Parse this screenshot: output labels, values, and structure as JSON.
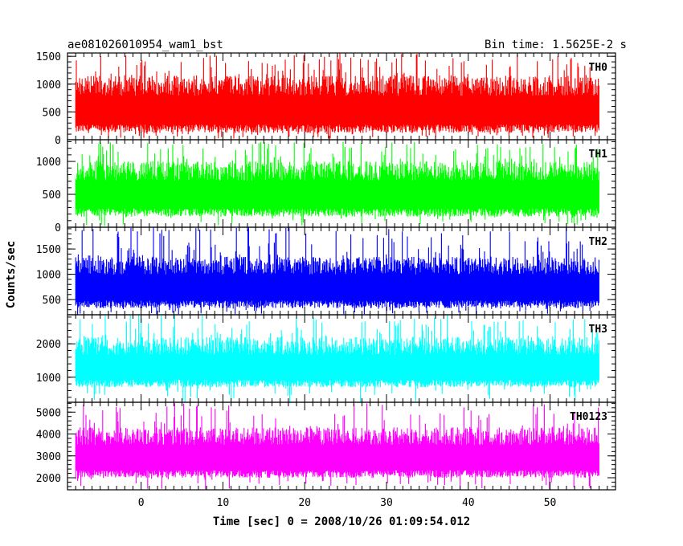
{
  "chart_data": {
    "type": "line",
    "title_left": "ae081026010954_wam1_bst",
    "title_right": "Bin time: 1.5625E-2 s",
    "xlabel": "Time [sec] 0 = 2008/10/26 01:09:54.012",
    "ylabel": "Counts/sec",
    "xlim": [
      -9,
      58
    ],
    "x_data_range": [
      -8,
      56
    ],
    "x_ticks": [
      0,
      10,
      20,
      30,
      40,
      50
    ],
    "x_tick_labels": [
      "0",
      "10",
      "20",
      "30",
      "40",
      "50"
    ],
    "grid": false,
    "panels": [
      {
        "name": "TH0",
        "color": "#ff0000",
        "ylim": [
          0,
          1560
        ],
        "y_ticks": [
          0,
          500,
          1000,
          1500
        ],
        "y_tick_labels": [
          "0",
          "500",
          "1000",
          "1500"
        ],
        "base_min": 120,
        "base_max": 1150,
        "peak_max": 1560,
        "dip_min": 20
      },
      {
        "name": "TH1",
        "color": "#00ff00",
        "ylim": [
          0,
          1330
        ],
        "y_ticks": [
          0,
          500,
          1000
        ],
        "y_tick_labels": [
          "0",
          "500",
          "1000"
        ],
        "base_min": 160,
        "base_max": 1000,
        "peak_max": 1300,
        "dip_min": 20
      },
      {
        "name": "TH2",
        "color": "#0000ff",
        "ylim": [
          200,
          1930
        ],
        "y_ticks": [
          500,
          1000,
          1500
        ],
        "y_tick_labels": [
          "500",
          "1000",
          "1500"
        ],
        "base_min": 330,
        "base_max": 1350,
        "peak_max": 1930,
        "dip_min": 200
      },
      {
        "name": "TH3",
        "color": "#00ffff",
        "ylim": [
          250,
          2870
        ],
        "y_ticks": [
          1000,
          2000
        ],
        "y_tick_labels": [
          "1000",
          "2000"
        ],
        "base_min": 700,
        "base_max": 2200,
        "peak_max": 2870,
        "dip_min": 250
      },
      {
        "name": "TH0123",
        "color": "#ff00ff",
        "ylim": [
          1450,
          5450
        ],
        "y_ticks": [
          2000,
          3000,
          4000,
          5000
        ],
        "y_tick_labels": [
          "2000",
          "3000",
          "4000",
          "5000"
        ],
        "base_min": 2000,
        "base_max": 4300,
        "peak_max": 5450,
        "dip_min": 1450
      }
    ]
  }
}
